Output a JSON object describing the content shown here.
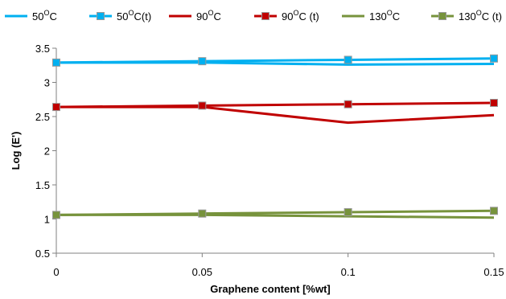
{
  "chart_data": {
    "type": "line",
    "xlabel": "Graphene content [%wt]",
    "ylabel": "Log (E')",
    "x": [
      0,
      0.05,
      0.1,
      0.15
    ],
    "x_tick_labels": [
      "0",
      "0.05",
      "0.1",
      "0.15"
    ],
    "ylim": [
      0.5,
      3.5
    ],
    "y_ticks": [
      0.5,
      1,
      1.5,
      2,
      2.5,
      3,
      3.5
    ],
    "y_tick_labels": [
      "0.5",
      "1",
      "1.5",
      "2",
      "2.5",
      "3",
      "3.5"
    ],
    "grid": false,
    "legend_position": "top",
    "series": [
      {
        "name": "50°C",
        "label_main": "50",
        "label_sup": "O",
        "label_rest": "C",
        "color": "#00b0f0",
        "marker": "none",
        "values": [
          3.29,
          3.29,
          3.26,
          3.27
        ]
      },
      {
        "name": "50°C(t)",
        "label_main": "50",
        "label_sup": "O",
        "label_rest": "C(t)",
        "color": "#00b0f0",
        "marker": "square",
        "values": [
          3.29,
          3.31,
          3.33,
          3.35
        ]
      },
      {
        "name": "90°C",
        "label_main": "90",
        "label_sup": "O",
        "label_rest": "C",
        "color": "#c00000",
        "marker": "none",
        "values": [
          2.64,
          2.64,
          2.41,
          2.52
        ]
      },
      {
        "name": "90°C (t)",
        "label_main": "90",
        "label_sup": "O",
        "label_rest": "C (t)",
        "color": "#c00000",
        "marker": "square",
        "values": [
          2.64,
          2.66,
          2.68,
          2.7
        ]
      },
      {
        "name": "130°C",
        "label_main": "130",
        "label_sup": "O",
        "label_rest": "C",
        "color": "#77933c",
        "marker": "none",
        "values": [
          1.06,
          1.06,
          1.04,
          1.02
        ]
      },
      {
        "name": "130°C (t)",
        "label_main": "130",
        "label_sup": "O",
        "label_rest": "C (t)",
        "color": "#77933c",
        "marker": "square",
        "values": [
          1.06,
          1.08,
          1.1,
          1.12
        ]
      }
    ]
  }
}
